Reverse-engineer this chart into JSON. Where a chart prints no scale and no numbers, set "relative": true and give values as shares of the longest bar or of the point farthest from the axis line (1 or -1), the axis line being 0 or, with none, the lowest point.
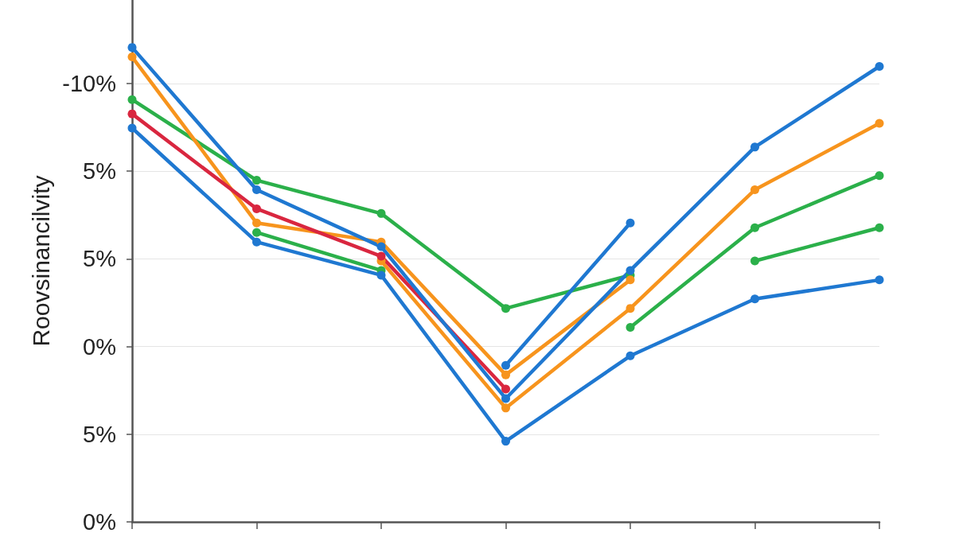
{
  "chart_data": {
    "type": "line",
    "relative": true,
    "ylabel": "Roovsinancilvity",
    "annotations": [
      "-10%",
      "5%",
      "5%",
      "0%",
      "5%",
      "0%"
    ],
    "categories": [
      null,
      null,
      null,
      null,
      null,
      null,
      null
    ],
    "grid": "y",
    "marker": "circle",
    "line_style": "solid",
    "series": [
      {
        "color": "#2bb04a",
        "values": [
          0.89,
          0.72,
          0.65,
          0.45,
          0.52,
          null,
          null
        ]
      },
      {
        "color": "#2bb04a",
        "values": [
          null,
          0.61,
          0.53,
          null,
          null,
          null,
          null
        ]
      },
      {
        "color": "#2bb04a",
        "values": [
          null,
          null,
          null,
          null,
          0.41,
          0.62,
          0.73
        ]
      },
      {
        "color": "#2bb04a",
        "values": [
          null,
          null,
          null,
          null,
          null,
          0.55,
          0.62
        ]
      },
      {
        "color": "#f7941d",
        "values": [
          0.98,
          0.63,
          0.59,
          0.31,
          0.51,
          null,
          null
        ]
      },
      {
        "color": "#f7941d",
        "values": [
          null,
          null,
          0.55,
          0.24,
          0.45,
          0.7,
          0.84
        ]
      },
      {
        "color": "#d9263f",
        "values": [
          0.86,
          0.66,
          0.56,
          0.28,
          null,
          null,
          null
        ]
      },
      {
        "color": "#1f78d1",
        "values": [
          null,
          null,
          null,
          0.33,
          0.63,
          null,
          null
        ]
      },
      {
        "color": "#1f78d1",
        "values": [
          0.83,
          0.59,
          0.52,
          0.17,
          0.35,
          0.47,
          0.51
        ]
      },
      {
        "color": "#1f78d1",
        "values": [
          1.0,
          0.7,
          0.58,
          0.26,
          0.53,
          0.79,
          0.96
        ]
      }
    ]
  }
}
